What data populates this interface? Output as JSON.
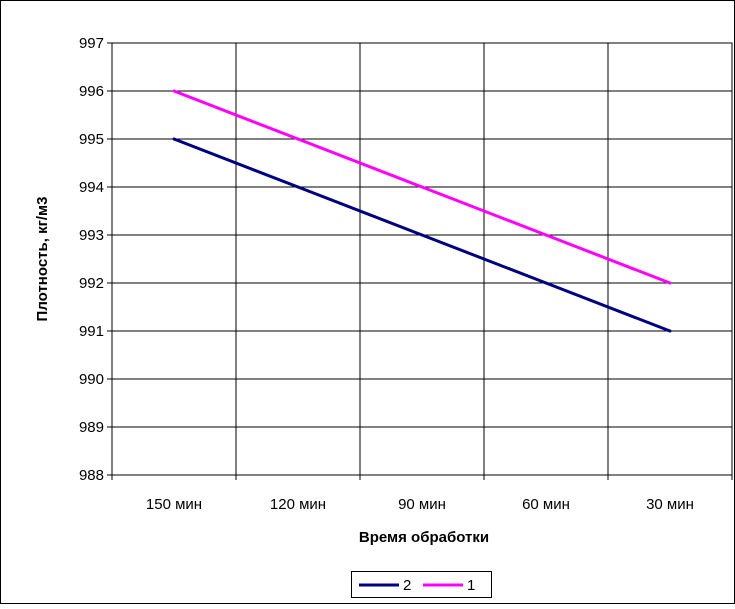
{
  "chart_data": {
    "type": "line",
    "categories": [
      "150 мин",
      "120 мин",
      "90 мин",
      "60 мин",
      "30 мин"
    ],
    "series": [
      {
        "name": "2",
        "color": "#000080",
        "values": [
          995,
          994,
          993,
          992,
          991
        ]
      },
      {
        "name": "1",
        "color": "#FF00FF",
        "values": [
          996,
          995,
          994,
          993,
          992
        ]
      }
    ],
    "xlabel": "Время обработки",
    "ylabel": "Плотность, кг/м3",
    "ylim": [
      988,
      997
    ],
    "yticks": [
      988,
      989,
      990,
      991,
      992,
      993,
      994,
      995,
      996,
      997
    ],
    "grid": true,
    "legend_position": "bottom"
  }
}
